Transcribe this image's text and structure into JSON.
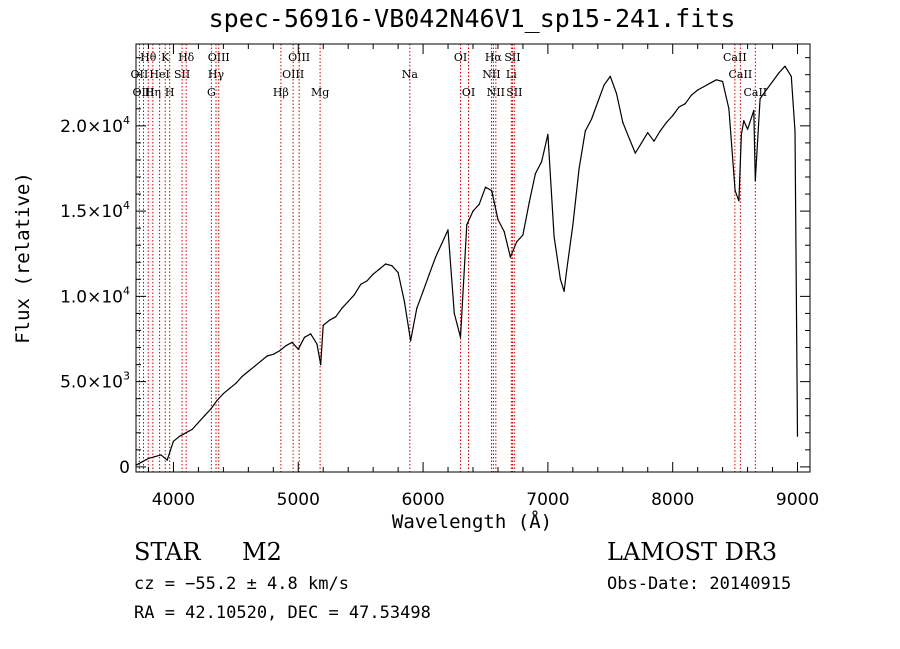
{
  "title": "spec-56916-VB042N46V1_sp15-241.fits",
  "chart_data": {
    "type": "line",
    "title": "spec-56916-VB042N46V1_sp15-241.fits",
    "xlabel": "Wavelength (Å)",
    "ylabel": "Flux (relative)",
    "xlim": [
      3700,
      9100
    ],
    "ylim": [
      -300,
      24800
    ],
    "x_ticks": [
      4000,
      5000,
      6000,
      7000,
      8000,
      9000
    ],
    "x_tick_labels": [
      "4000",
      "5000",
      "6000",
      "7000",
      "8000",
      "9000"
    ],
    "y_ticks": [
      0,
      5000,
      10000,
      15000,
      20000
    ],
    "y_tick_labels": [
      {
        "mant": "0",
        "exp": ""
      },
      {
        "mant": "5.0×10",
        "exp": "3"
      },
      {
        "mant": "1.0×10",
        "exp": "4"
      },
      {
        "mant": "1.5×10",
        "exp": "4"
      },
      {
        "mant": "2.0×10",
        "exp": "4"
      }
    ],
    "series": [
      {
        "name": "spectrum",
        "x": [
          3700,
          3750,
          3800,
          3850,
          3900,
          3950,
          4000,
          4050,
          4100,
          4150,
          4200,
          4250,
          4300,
          4350,
          4400,
          4450,
          4500,
          4550,
          4600,
          4650,
          4700,
          4750,
          4800,
          4850,
          4900,
          4950,
          5000,
          5050,
          5100,
          5150,
          5180,
          5200,
          5250,
          5300,
          5350,
          5400,
          5450,
          5500,
          5550,
          5600,
          5650,
          5700,
          5750,
          5800,
          5850,
          5900,
          5950,
          6000,
          6050,
          6100,
          6150,
          6200,
          6250,
          6300,
          6350,
          6400,
          6450,
          6500,
          6550,
          6600,
          6650,
          6700,
          6750,
          6800,
          6850,
          6900,
          6950,
          7000,
          7050,
          7100,
          7130,
          7150,
          7200,
          7250,
          7300,
          7350,
          7400,
          7450,
          7500,
          7550,
          7600,
          7650,
          7700,
          7750,
          7800,
          7850,
          7900,
          7950,
          8000,
          8050,
          8100,
          8150,
          8200,
          8250,
          8300,
          8350,
          8400,
          8450,
          8500,
          8530,
          8550,
          8570,
          8600,
          8650,
          8662,
          8700,
          8750,
          8800,
          8850,
          8900,
          8950,
          8980,
          9000
        ],
        "values": [
          100,
          300,
          500,
          600,
          700,
          400,
          1500,
          1800,
          2000,
          2200,
          2600,
          3000,
          3400,
          3900,
          4300,
          4600,
          4900,
          5300,
          5600,
          5900,
          6200,
          6500,
          6600,
          6800,
          7100,
          7300,
          6900,
          7600,
          7800,
          7200,
          6000,
          8300,
          8600,
          8800,
          9300,
          9700,
          10100,
          10700,
          10900,
          11300,
          11600,
          11900,
          11800,
          11400,
          9700,
          7400,
          9300,
          10300,
          11300,
          12300,
          13100,
          13900,
          9000,
          7600,
          14200,
          15000,
          15400,
          16400,
          16200,
          14500,
          13800,
          12300,
          13200,
          13600,
          15500,
          17200,
          17900,
          19500,
          13500,
          11000,
          10300,
          11500,
          14200,
          17500,
          19700,
          20400,
          21400,
          22400,
          22900,
          21900,
          20200,
          19300,
          18400,
          19000,
          19600,
          19100,
          19700,
          20200,
          20600,
          21100,
          21300,
          21800,
          22100,
          22300,
          22500,
          22700,
          22600,
          21000,
          16200,
          15600,
          19500,
          20300,
          19800,
          20900,
          16800,
          21600,
          22100,
          22600,
          23100,
          23500,
          22900,
          19700,
          1800
        ]
      }
    ],
    "lines": [
      {
        "name": "Hθ",
        "wave": 3798,
        "row": 1
      },
      {
        "name": "OII",
        "wave": 3727,
        "row": 2
      },
      {
        "name": "OIII",
        "wave": 3760,
        "row": 3
      },
      {
        "name": "HeI",
        "wave": 3889,
        "row": 2
      },
      {
        "name": "K",
        "wave": 3934,
        "row": 1
      },
      {
        "name": "Hη",
        "wave": 3835,
        "row": 3
      },
      {
        "name": "H",
        "wave": 3970,
        "row": 3
      },
      {
        "name": "Hδ",
        "wave": 4102,
        "row": 1
      },
      {
        "name": "SII",
        "wave": 4069,
        "row": 2
      },
      {
        "name": "OIII",
        "wave": 4363,
        "row": 1
      },
      {
        "name": "Hγ",
        "wave": 4341,
        "row": 2
      },
      {
        "name": "G",
        "wave": 4304,
        "row": 3
      },
      {
        "name": "Hβ",
        "wave": 4861,
        "row": 3
      },
      {
        "name": "OIII",
        "wave": 5007,
        "row": 1
      },
      {
        "name": "OIII",
        "wave": 4959,
        "row": 2
      },
      {
        "name": "Mg",
        "wave": 5175,
        "row": 3
      },
      {
        "name": "Na",
        "wave": 5894,
        "row": 2
      },
      {
        "name": "OI",
        "wave": 6300,
        "row": 1
      },
      {
        "name": "OI",
        "wave": 6364,
        "row": 3
      },
      {
        "name": "Hα",
        "wave": 6563,
        "row": 1
      },
      {
        "name": "NII",
        "wave": 6548,
        "row": 2
      },
      {
        "name": "NII",
        "wave": 6583,
        "row": 3
      },
      {
        "name": "SII",
        "wave": 6716,
        "row": 1
      },
      {
        "name": "Li",
        "wave": 6707,
        "row": 2
      },
      {
        "name": "SII",
        "wave": 6731,
        "row": 3
      },
      {
        "name": "CaII",
        "wave": 8498,
        "row": 1
      },
      {
        "name": "CaII",
        "wave": 8542,
        "row": 2
      },
      {
        "name": "CaII",
        "wave": 8662,
        "row": 3
      }
    ]
  },
  "info": {
    "class": "STAR",
    "subclass": "M2",
    "survey": "LAMOST DR3",
    "cz": "cz = −55.2 ± 4.8 km/s",
    "obs_date": "Obs-Date: 20140915",
    "coords": "RA =  42.10520, DEC =  47.53498"
  },
  "colors": {
    "line_marker": "#cc0000",
    "spectrum": "#000000",
    "axis": "#000000"
  }
}
